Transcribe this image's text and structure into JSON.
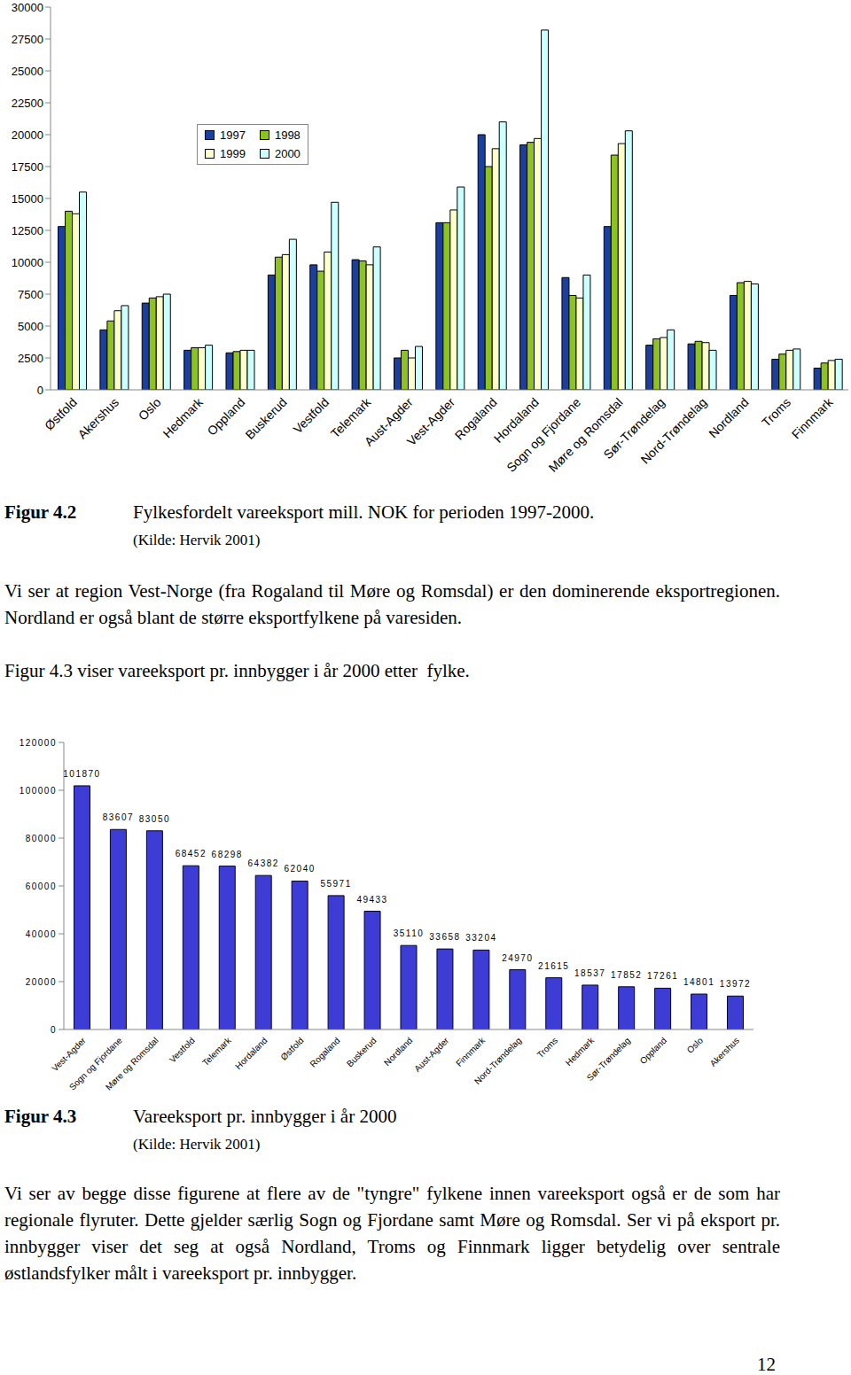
{
  "chart_data": [
    {
      "type": "bar",
      "categories": [
        "Østfold",
        "Akershus",
        "Oslo",
        "Hedmark",
        "Oppland",
        "Buskerud",
        "Vestfold",
        "Telemark",
        "Aust-Agder",
        "Vest-Agder",
        "Rogaland",
        "Hordaland",
        "Sogn og Fjordane",
        "Møre og Romsdal",
        "Sør-Trøndelag",
        "Nord-Trøndelag",
        "Nordland",
        "Troms",
        "Finnmark"
      ],
      "series": [
        {
          "name": "1997",
          "color": "#1c3f9e",
          "values": [
            12800,
            4700,
            6800,
            3100,
            2900,
            9000,
            9800,
            10200,
            2500,
            13100,
            20000,
            19200,
            8800,
            12800,
            3500,
            3600,
            7400,
            2400,
            1700
          ]
        },
        {
          "name": "1998",
          "color": "#8dc21f",
          "values": [
            14000,
            5400,
            7200,
            3300,
            3000,
            10400,
            9300,
            10100,
            3100,
            13100,
            17500,
            19400,
            7400,
            18400,
            4000,
            3800,
            8400,
            2800,
            2100
          ]
        },
        {
          "name": "1999",
          "color": "#ffffcc",
          "values": [
            13800,
            6200,
            7300,
            3300,
            3100,
            10600,
            10800,
            9800,
            2500,
            14100,
            18900,
            19700,
            7200,
            19300,
            4100,
            3700,
            8500,
            3100,
            2300
          ]
        },
        {
          "name": "2000",
          "color": "#ccffff",
          "values": [
            15500,
            6600,
            7500,
            3500,
            3100,
            11800,
            14700,
            11200,
            3400,
            15900,
            21000,
            28200,
            9000,
            20300,
            4700,
            3100,
            8300,
            3200,
            2400
          ]
        }
      ],
      "ylim": [
        0,
        30000
      ],
      "yticks": [
        0,
        2500,
        5000,
        7500,
        10000,
        12500,
        15000,
        17500,
        20000,
        22500,
        25000,
        27500,
        30000
      ],
      "grid": false,
      "legend": "top-left"
    },
    {
      "type": "bar",
      "categories": [
        "Vest-Agder",
        "Sogn og Fjordane",
        "Møre og Romsdal",
        "Vestfold",
        "Telemark",
        "Hordaland",
        "Østfold",
        "Rogaland",
        "Buskerud",
        "Nordland",
        "Aust-Agder",
        "Finnmark",
        "Nord-Trøndelag",
        "Troms",
        "Hedmark",
        "Sør-Trøndelag",
        "Oppland",
        "Oslo",
        "Akershus"
      ],
      "values": [
        101870,
        83607,
        83050,
        68452,
        68298,
        64382,
        62040,
        55971,
        49433,
        35110,
        33658,
        33204,
        24970,
        21615,
        18537,
        17852,
        17261,
        14801,
        13972
      ],
      "color": "#3d3dd6",
      "ylim": [
        0,
        120000
      ],
      "yticks": [
        0,
        20000,
        40000,
        60000,
        80000,
        100000,
        120000
      ],
      "grid": false,
      "data_labels": true
    }
  ],
  "document": {
    "figure_4_2": {
      "label": "Figur 4.2",
      "caption": "Fylkesfordelt vareeksport mill. NOK for perioden 1997-2000.",
      "source": "(Kilde: Hervik 2001)"
    },
    "paragraph_1": "Vi ser at region Vest-Norge (fra Rogaland til Møre og Romsdal) er den dominerende eksportregionen. Nordland er også blant de større eksportfylkene på varesiden.",
    "paragraph_2": "Figur 4.3 viser vareeksport pr. innbygger i år 2000 etter  fylke.",
    "figure_4_3": {
      "label": "Figur 4.3",
      "caption": "Vareeksport pr. innbygger i år 2000",
      "source": "(Kilde: Hervik 2001)"
    },
    "paragraph_3": "Vi ser av begge disse figurene at flere av de \"tyngre\" fylkene innen vareeksport også er de som har regionale flyruter. Dette gjelder særlig Sogn og Fjordane samt Møre og Romsdal. Ser vi på eksport pr. innbygger viser det seg at også Nordland, Troms og Finnmark ligger betydelig over sentrale østlandsfylker målt i vareeksport pr. innbygger.",
    "page_number": "12"
  }
}
